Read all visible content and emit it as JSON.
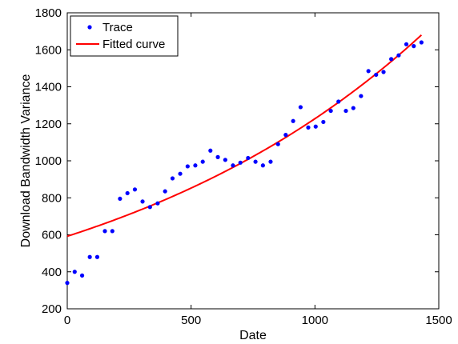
{
  "chart_data": {
    "type": "scatter",
    "title": "",
    "xlabel": "Date",
    "ylabel": "Download Bandwidth Variance",
    "xlim": [
      0,
      1500
    ],
    "ylim": [
      200,
      1800
    ],
    "xticks": [
      0,
      500,
      1000,
      1500
    ],
    "yticks": [
      200,
      400,
      600,
      800,
      1000,
      1200,
      1400,
      1600,
      1800
    ],
    "grid": false,
    "legend_position": "top-left",
    "series": [
      {
        "name": "Trace",
        "style": "markers",
        "color": "#0000ff",
        "x": [
          0,
          30,
          60,
          91,
          121,
          152,
          182,
          213,
          243,
          273,
          304,
          334,
          365,
          395,
          425,
          456,
          486,
          517,
          547,
          578,
          608,
          638,
          669,
          699,
          730,
          760,
          790,
          821,
          851,
          882,
          912,
          942,
          973,
          1003,
          1034,
          1064,
          1095,
          1125,
          1155,
          1186,
          1216,
          1247,
          1277,
          1308,
          1338,
          1369,
          1399,
          1430
        ],
        "y": [
          340,
          400,
          380,
          480,
          480,
          620,
          620,
          795,
          825,
          845,
          780,
          750,
          770,
          835,
          905,
          930,
          970,
          975,
          995,
          1055,
          1020,
          1005,
          975,
          990,
          1015,
          995,
          975,
          995,
          1090,
          1140,
          1215,
          1290,
          1180,
          1185,
          1210,
          1270,
          1320,
          1270,
          1285,
          1350,
          1485,
          1465,
          1480,
          1550,
          1570,
          1630,
          1620,
          1640
        ]
      },
      {
        "name": "Fitted curve",
        "style": "line",
        "color": "#ff0000",
        "x": [
          0,
          100,
          200,
          300,
          400,
          500,
          600,
          700,
          800,
          900,
          1000,
          1100,
          1200,
          1300,
          1430
        ],
        "y": [
          592,
          633,
          677,
          724,
          774,
          828,
          885,
          946,
          1012,
          1082,
          1157,
          1237,
          1322,
          1414,
          1680
        ]
      }
    ]
  }
}
